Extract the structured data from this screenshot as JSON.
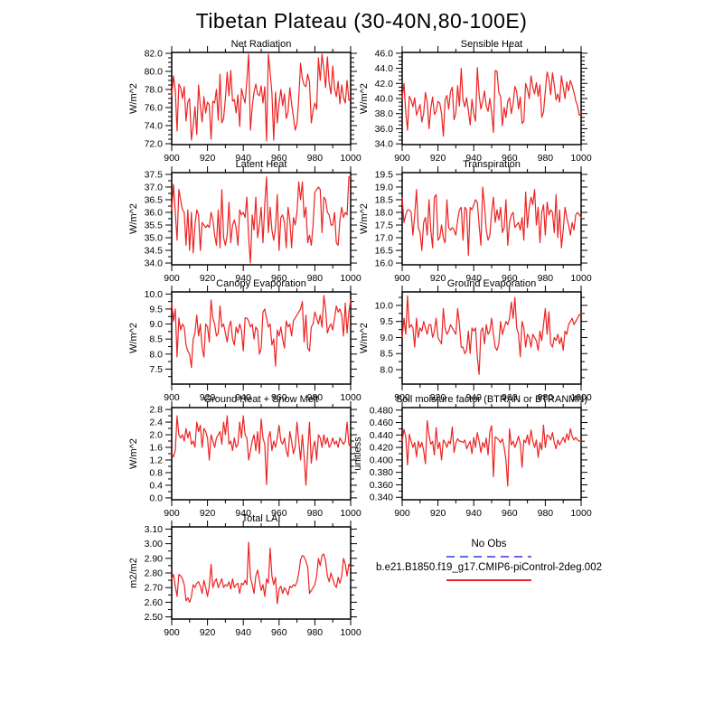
{
  "title": "Tibetan Plateau (30-40N,80-100E)",
  "legend": {
    "no_obs_label": "No Obs",
    "no_obs_color": "#6666ee",
    "no_obs_style": "dashed",
    "model_label": "b.e21.B1850.f19_g17.CMIP6-piControl-2deg.002",
    "model_color": "#ee2222",
    "model_style": "solid"
  },
  "axis_color": "#000000",
  "chart_data": [
    {
      "type": "line",
      "title": "Net Radiation",
      "ylabel": "W/m^2",
      "x_start": 900,
      "x_end": 1000,
      "xticks": [
        900,
        920,
        940,
        960,
        980,
        1000
      ],
      "x_minor_ticks": [
        910,
        930,
        950,
        970,
        990
      ],
      "ylim": [
        71.9,
        82.1
      ],
      "yticks": [
        72,
        74,
        76,
        78,
        80,
        82
      ],
      "ytick_labels": [
        "72.0",
        "74.0",
        "76.0",
        "78.0",
        "80.0",
        "82.0"
      ],
      "y_minor_per_major": 3,
      "values": [
        77.3,
        79.5,
        77.9,
        73.4,
        78.6,
        78.2,
        77.0,
        78.3,
        74.5,
        76.6,
        77.0,
        72.4,
        74.0,
        76.1,
        73.0,
        78.5,
        76.2,
        74.4,
        77.2,
        75.4,
        76.6,
        76.3,
        72.5,
        76.7,
        76.5,
        78.0,
        74.6,
        79.7,
        74.3,
        74.8,
        77.0,
        79.9,
        77.3,
        80.1,
        76.7,
        76.9,
        75.4,
        77.4,
        73.9,
        78.1,
        77.2,
        76.5,
        79.0,
        81.9,
        73.5,
        76.1,
        77.7,
        78.6,
        77.5,
        77.3,
        78.4,
        76.5,
        78.3,
        72.3,
        81.9,
        79.9,
        77.6,
        72.4,
        77.7,
        74.3,
        76.5,
        78.0,
        76.2,
        77.5,
        74.8,
        75.5,
        78.2,
        76.4,
        75.0,
        73.5,
        74.2,
        77.0,
        80.9,
        79.2,
        78.5,
        78.3,
        79.7,
        78.8,
        74.3,
        75.7,
        76.5,
        75.8,
        81.5,
        79.0,
        81.9,
        80.3,
        78.2,
        81.6,
        78.7,
        77.5,
        80.6,
        78.1,
        77.2,
        78.9,
        76.4,
        78.5,
        77.1,
        76.5,
        79.0,
        76.8,
        77.0
      ]
    },
    {
      "type": "line",
      "title": "Sensible Heat",
      "ylabel": "W/m^2",
      "x_start": 900,
      "x_end": 1000,
      "xticks": [
        900,
        920,
        940,
        960,
        980,
        1000
      ],
      "x_minor_ticks": [
        910,
        930,
        950,
        970,
        990
      ],
      "ylim": [
        33.9,
        46.1
      ],
      "yticks": [
        34,
        36,
        38,
        40,
        42,
        44,
        46
      ],
      "ytick_labels": [
        "34.0",
        "36.0",
        "38.0",
        "40.0",
        "42.0",
        "44.0",
        "46.0"
      ],
      "y_minor_per_major": 3,
      "values": [
        40.0,
        42.0,
        38.2,
        35.8,
        40.3,
        39.8,
        38.9,
        40.1,
        37.8,
        38.5,
        39.2,
        36.9,
        38.0,
        40.8,
        39.5,
        36.0,
        38.7,
        40.2,
        37.9,
        38.3,
        39.6,
        39.4,
        38.0,
        35.0,
        39.8,
        40.4,
        38.6,
        40.9,
        41.5,
        37.2,
        38.1,
        41.7,
        39.0,
        44.0,
        39.8,
        38.9,
        40.1,
        38.4,
        36.5,
        39.9,
        38.0,
        37.0,
        44.1,
        40.5,
        38.6,
        39.7,
        41.0,
        39.0,
        38.3,
        40.0,
        38.2,
        35.5,
        43.7,
        43.6,
        40.8,
        40.3,
        36.4,
        38.8,
        37.5,
        39.6,
        40.1,
        38.0,
        39.3,
        41.6,
        40.9,
        38.6,
        40.2,
        36.7,
        37.0,
        42.0,
        41.2,
        40.0,
        43.0,
        41.5,
        40.6,
        42.1,
        40.3,
        41.8,
        37.5,
        38.2,
        41.0,
        43.5,
        42.6,
        40.5,
        43.4,
        41.8,
        39.8,
        40.6,
        39.5,
        43.0,
        41.5,
        40.0,
        42.2,
        41.0,
        42.4,
        41.7,
        40.8,
        39.7,
        39.0,
        37.8,
        38.0
      ]
    },
    {
      "type": "line",
      "title": "Latent Heat",
      "ylabel": "W/m^2",
      "x_start": 900,
      "x_end": 1000,
      "xticks": [
        900,
        920,
        940,
        960,
        980,
        1000
      ],
      "x_minor_ticks": [
        910,
        930,
        950,
        970,
        990
      ],
      "ylim": [
        33.93,
        37.57
      ],
      "yticks": [
        34,
        34.5,
        35,
        35.5,
        36,
        36.5,
        37,
        37.5
      ],
      "ytick_labels": [
        "34.0",
        "34.5",
        "35.0",
        "35.5",
        "36.0",
        "36.5",
        "37.0",
        "37.5"
      ],
      "y_minor_per_major": 1,
      "values": [
        36.1,
        37.1,
        36.0,
        34.9,
        36.9,
        36.5,
        36.1,
        36.0,
        34.7,
        36.1,
        34.5,
        36.0,
        34.4,
        35.5,
        36.1,
        35.9,
        34.5,
        35.6,
        35.5,
        35.4,
        35.5,
        35.4,
        36.0,
        35.7,
        35.1,
        34.7,
        36.1,
        34.6,
        36.9,
        35.0,
        34.7,
        35.1,
        36.4,
        34.8,
        35.5,
        35.7,
        35.4,
        34.7,
        36.1,
        35.9,
        36.0,
        35.8,
        36.6,
        35.0,
        34.0,
        35.9,
        35.3,
        36.6,
        35.0,
        35.5,
        36.2,
        34.8,
        36.3,
        37.4,
        35.2,
        36.2,
        35.3,
        34.9,
        35.4,
        36.7,
        34.5,
        35.8,
        35.9,
        35.6,
        34.6,
        36.2,
        35.7,
        34.6,
        35.8,
        35.5,
        36.0,
        37.2,
        36.5,
        37.2,
        35.8,
        36.2,
        34.8,
        35.1,
        34.7,
        35.5,
        36.8,
        36.9,
        37.0,
        36.9,
        35.2,
        36.6,
        36.5,
        36.0,
        35.9,
        35.5,
        35.5,
        36.0,
        34.8,
        34.7,
        35.7,
        36.2,
        35.8,
        36.0,
        35.9,
        37.4,
        37.4
      ]
    },
    {
      "type": "line",
      "title": "Transpiration",
      "ylabel": "W/m^2",
      "x_start": 900,
      "x_end": 1000,
      "xticks": [
        900,
        920,
        940,
        960,
        980,
        1000
      ],
      "x_minor_ticks": [
        910,
        930,
        950,
        970,
        990
      ],
      "ylim": [
        15.93,
        19.57
      ],
      "yticks": [
        16,
        16.5,
        17,
        17.5,
        18,
        18.5,
        19,
        19.5
      ],
      "ytick_labels": [
        "16.0",
        "16.5",
        "17.0",
        "17.5",
        "18.0",
        "18.5",
        "19.0",
        "19.5"
      ],
      "y_minor_per_major": 1,
      "values": [
        18.6,
        17.6,
        17.9,
        18.1,
        18.1,
        18.0,
        17.1,
        17.9,
        18.9,
        17.4,
        17.2,
        16.5,
        17.6,
        17.8,
        17.1,
        18.5,
        17.3,
        16.6,
        18.6,
        18.7,
        16.9,
        17.0,
        17.5,
        17.0,
        16.8,
        18.5,
        17.4,
        17.3,
        17.4,
        17.3,
        17.1,
        17.7,
        18.1,
        18.2,
        16.9,
        18.2,
        18.1,
        16.3,
        18.2,
        18.1,
        18.3,
        18.5,
        18.4,
        17.5,
        16.7,
        19.0,
        18.3,
        17.3,
        16.9,
        17.1,
        18.0,
        18.6,
        17.6,
        18.1,
        17.7,
        18.2,
        17.2,
        17.4,
        18.5,
        16.7,
        17.6,
        17.9,
        18.0,
        17.4,
        17.5,
        17.6,
        17.3,
        17.8,
        16.9,
        18.8,
        17.4,
        18.2,
        18.6,
        18.3,
        18.9,
        17.5,
        18.2,
        16.8,
        18.0,
        18.3,
        17.1,
        18.4,
        17.9,
        18.1,
        18.0,
        17.2,
        18.7,
        17.0,
        18.1,
        16.6,
        17.3,
        18.2,
        17.8,
        17.5,
        17.1,
        17.6,
        17.3,
        17.9,
        18.0,
        17.9,
        17.8
      ]
    },
    {
      "type": "line",
      "title": "Canopy Evaporation",
      "ylabel": "W/m^2",
      "x_start": 900,
      "x_end": 1000,
      "xticks": [
        900,
        920,
        940,
        960,
        980,
        1000
      ],
      "x_minor_ticks": [
        910,
        930,
        950,
        970,
        990
      ],
      "ylim": [
        7.0,
        10.07
      ],
      "yticks": [
        7.5,
        8,
        8.5,
        9,
        9.5,
        10
      ],
      "ytick_labels": [
        "7.5",
        "8.0",
        "8.5",
        "9.0",
        "9.5",
        "10.0"
      ],
      "y_minor_per_major": 1,
      "values": [
        9.7,
        9.1,
        9.5,
        7.9,
        9.2,
        8.8,
        9.0,
        8.9,
        8.3,
        8.1,
        8.0,
        7.55,
        8.5,
        8.7,
        9.3,
        8.6,
        9.0,
        8.2,
        7.9,
        9.0,
        8.9,
        8.4,
        9.8,
        9.2,
        9.0,
        8.6,
        8.7,
        9.6,
        8.9,
        9.0,
        8.7,
        8.4,
        8.9,
        9.1,
        8.5,
        8.3,
        8.9,
        8.7,
        9.0,
        8.8,
        8.1,
        9.2,
        9.2,
        9.1,
        8.9,
        9.0,
        8.5,
        8.9,
        8.8,
        8.0,
        8.2,
        9.4,
        9.5,
        9.2,
        8.9,
        9.0,
        8.3,
        8.5,
        7.6,
        8.8,
        8.6,
        8.9,
        8.5,
        8.2,
        9.1,
        8.9,
        9.0,
        8.6,
        9.1,
        9.2,
        9.3,
        9.4,
        9.5,
        9.75,
        8.4,
        9.3,
        8.2,
        8.1,
        8.9,
        9.0,
        9.4,
        9.2,
        9.0,
        9.3,
        8.9,
        9.95,
        9.5,
        8.7,
        8.9,
        9.0,
        8.8,
        9.2,
        9.6,
        9.4,
        9.5,
        9.3,
        8.6,
        9.7,
        8.7,
        9.4,
        9.8
      ]
    },
    {
      "type": "line",
      "title": "Ground Evaporation",
      "ylabel": "W/m^2",
      "x_start": 900,
      "x_end": 1000,
      "xticks": [
        900,
        920,
        940,
        960,
        980,
        1000
      ],
      "x_minor_ticks": [
        910,
        930,
        950,
        970,
        990
      ],
      "ylim": [
        7.55,
        10.42
      ],
      "yticks": [
        8,
        8.5,
        9,
        9.5,
        10
      ],
      "ytick_labels": [
        "8.0",
        "8.5",
        "9.0",
        "9.5",
        "10.0"
      ],
      "y_minor_per_major": 1,
      "values": [
        9.0,
        9.6,
        9.1,
        10.3,
        9.3,
        9.4,
        9.3,
        8.7,
        9.6,
        9.0,
        9.3,
        9.2,
        9.5,
        9.3,
        9.1,
        9.4,
        9.4,
        9.0,
        9.2,
        9.6,
        9.0,
        8.9,
        8.8,
        9.9,
        9.3,
        9.1,
        9.2,
        9.4,
        9.3,
        9.2,
        9.1,
        9.9,
        9.4,
        8.7,
        8.7,
        8.5,
        8.6,
        9.2,
        8.5,
        9.3,
        9.2,
        9.3,
        8.4,
        7.85,
        9.2,
        9.3,
        8.8,
        9.4,
        9.1,
        9.2,
        9.6,
        9.1,
        8.7,
        8.6,
        8.8,
        9.5,
        9.1,
        9.3,
        9.5,
        9.4,
        9.6,
        10.1,
        9.6,
        10.25,
        9.3,
        9.1,
        8.4,
        9.5,
        9.3,
        8.7,
        9.1,
        9.0,
        8.7,
        9.1,
        9.0,
        8.9,
        8.6,
        9.2,
        8.9,
        9.4,
        9.9,
        9.1,
        9.8,
        8.8,
        8.7,
        9.0,
        8.9,
        9.1,
        8.8,
        9.0,
        8.6,
        9.2,
        9.1,
        9.4,
        9.5,
        9.6,
        9.4,
        9.5,
        9.6,
        9.7,
        9.75
      ]
    },
    {
      "type": "line",
      "title": "Ground Heat + Snow Melt",
      "ylabel": "W/m^2",
      "x_start": 900,
      "x_end": 1000,
      "xticks": [
        900,
        920,
        940,
        960,
        980,
        1000
      ],
      "x_minor_ticks": [
        910,
        930,
        950,
        970,
        990
      ],
      "ylim": [
        -0.06,
        2.86
      ],
      "yticks": [
        0,
        0.4,
        0.8,
        1.2,
        1.6,
        2,
        2.4,
        2.8
      ],
      "ytick_labels": [
        "0.0",
        "0.4",
        "0.8",
        "1.2",
        "1.6",
        "2.0",
        "2.4",
        "2.8"
      ],
      "y_minor_per_major": 1,
      "values": [
        1.4,
        1.3,
        1.5,
        2.6,
        2.0,
        1.9,
        2.0,
        1.8,
        2.2,
        1.9,
        2.1,
        1.7,
        1.8,
        1.6,
        2.4,
        2.1,
        2.3,
        1.6,
        2.2,
        2.1,
        1.9,
        1.2,
        2.0,
        1.8,
        1.6,
        1.9,
        2.0,
        2.1,
        1.7,
        2.4,
        2.0,
        2.6,
        1.7,
        1.8,
        1.5,
        1.9,
        1.6,
        1.7,
        2.4,
        1.9,
        2.6,
        2.0,
        1.9,
        1.2,
        1.5,
        1.8,
        2.0,
        1.5,
        2.1,
        1.4,
        2.5,
        1.9,
        1.7,
        0.42,
        1.9,
        2.1,
        1.5,
        1.8,
        1.6,
        1.9,
        2.3,
        1.8,
        1.7,
        1.9,
        1.5,
        1.3,
        2.1,
        1.8,
        1.4,
        1.6,
        2.4,
        1.8,
        1.2,
        2.0,
        1.3,
        0.4,
        1.5,
        2.4,
        1.1,
        1.6,
        1.8,
        1.2,
        2.0,
        1.9,
        1.6,
        2.0,
        1.7,
        1.9,
        1.6,
        1.7,
        1.9,
        1.7,
        1.8,
        1.6,
        1.9,
        1.8,
        1.7,
        1.8,
        2.4,
        1.7,
        1.6
      ]
    },
    {
      "type": "line",
      "title": "Soil moisture factor (BTRAN or BTRANMN)",
      "ylabel": "unitless",
      "x_start": 900,
      "x_end": 1000,
      "xticks": [
        900,
        920,
        940,
        960,
        980,
        1000
      ],
      "x_minor_ticks": [
        910,
        930,
        950,
        970,
        990
      ],
      "ylim": [
        0.336,
        0.484
      ],
      "yticks": [
        0.34,
        0.36,
        0.38,
        0.4,
        0.42,
        0.44,
        0.46,
        0.48
      ],
      "ytick_labels": [
        "0.340",
        "0.360",
        "0.380",
        "0.400",
        "0.420",
        "0.440",
        "0.460",
        "0.480"
      ],
      "y_minor_per_major": 1,
      "values": [
        0.43,
        0.449,
        0.438,
        0.392,
        0.441,
        0.43,
        0.42,
        0.428,
        0.405,
        0.43,
        0.42,
        0.428,
        0.415,
        0.394,
        0.463,
        0.44,
        0.425,
        0.43,
        0.408,
        0.452,
        0.418,
        0.428,
        0.4,
        0.432,
        0.428,
        0.42,
        0.43,
        0.426,
        0.453,
        0.412,
        0.427,
        0.434,
        0.43,
        0.43,
        0.428,
        0.432,
        0.418,
        0.424,
        0.43,
        0.41,
        0.436,
        0.42,
        0.444,
        0.43,
        0.412,
        0.428,
        0.42,
        0.435,
        0.408,
        0.445,
        0.455,
        0.373,
        0.437,
        0.435,
        0.432,
        0.428,
        0.434,
        0.42,
        0.4,
        0.358,
        0.45,
        0.424,
        0.43,
        0.42,
        0.428,
        0.438,
        0.426,
        0.388,
        0.432,
        0.428,
        0.44,
        0.424,
        0.448,
        0.43,
        0.42,
        0.432,
        0.404,
        0.428,
        0.416,
        0.456,
        0.42,
        0.44,
        0.438,
        0.432,
        0.444,
        0.428,
        0.418,
        0.432,
        0.424,
        0.43,
        0.436,
        0.428,
        0.442,
        0.432,
        0.45,
        0.438,
        0.432,
        0.436,
        0.432,
        0.43,
        0.43
      ]
    },
    {
      "type": "line",
      "title": "Total LAI",
      "ylabel": "m2/m2",
      "x_start": 900,
      "x_end": 1000,
      "xticks": [
        900,
        920,
        940,
        960,
        980,
        1000
      ],
      "x_minor_ticks": [
        910,
        930,
        950,
        970,
        990
      ],
      "ylim": [
        2.485,
        3.115
      ],
      "yticks": [
        2.5,
        2.6,
        2.7,
        2.8,
        2.9,
        3.0,
        3.1
      ],
      "ytick_labels": [
        "2.50",
        "2.60",
        "2.70",
        "2.80",
        "2.90",
        "3.00",
        "3.10"
      ],
      "y_minor_per_major": 1,
      "values": [
        2.76,
        2.79,
        2.71,
        2.64,
        2.79,
        2.78,
        2.76,
        2.72,
        2.61,
        2.63,
        2.6,
        2.64,
        2.72,
        2.7,
        2.73,
        2.74,
        2.71,
        2.66,
        2.75,
        2.7,
        2.64,
        2.71,
        2.86,
        2.7,
        2.74,
        2.76,
        2.7,
        2.73,
        2.76,
        2.7,
        2.72,
        2.71,
        2.74,
        2.69,
        2.76,
        2.7,
        2.72,
        2.73,
        2.66,
        2.73,
        2.72,
        2.75,
        2.72,
        3.01,
        2.77,
        2.72,
        2.66,
        2.78,
        2.82,
        2.75,
        2.68,
        2.72,
        2.64,
        2.76,
        2.73,
        2.97,
        2.78,
        2.72,
        2.77,
        2.59,
        2.69,
        2.71,
        2.66,
        2.7,
        2.68,
        2.65,
        2.71,
        2.7,
        2.72,
        2.71,
        2.74,
        2.8,
        2.89,
        2.92,
        2.91,
        2.88,
        2.84,
        2.66,
        2.68,
        2.7,
        2.72,
        2.78,
        2.9,
        2.85,
        2.92,
        2.93,
        2.88,
        2.78,
        2.74,
        2.8,
        2.76,
        2.72,
        2.7,
        2.77,
        2.73,
        2.78,
        2.9,
        2.86,
        2.78,
        2.86,
        2.84
      ]
    }
  ]
}
